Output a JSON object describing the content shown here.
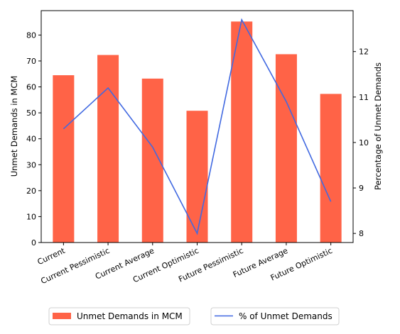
{
  "chart_data": {
    "type": "bar",
    "categories": [
      "Current",
      "Current Pessimistic",
      "Current Average",
      "Current Optimistic",
      "Future Pessimistic",
      "Future Average",
      "Future Optimistic"
    ],
    "series": [
      {
        "name": "Unmet Demands in MCM",
        "type": "bar",
        "axis": "left",
        "color": "#ff6347",
        "values": [
          64.5,
          72.3,
          63.2,
          50.8,
          85.2,
          72.6,
          57.3
        ]
      },
      {
        "name": "% of Unmet Demands",
        "type": "line",
        "axis": "right",
        "color": "#4169e1",
        "values": [
          10.3,
          11.2,
          9.9,
          8.0,
          12.7,
          10.9,
          8.7
        ]
      }
    ],
    "ylabel": "Unmet Demands in MCM",
    "y2label": "Percentage of Unmet Demands",
    "ylim": [
      0,
      89.4
    ],
    "y2lim": [
      7.8,
      12.9
    ],
    "yticks": [
      0,
      10,
      20,
      30,
      40,
      50,
      60,
      70,
      80
    ],
    "y2ticks": [
      8,
      9,
      10,
      11,
      12
    ],
    "grid": false,
    "legend_position": "bottom"
  }
}
